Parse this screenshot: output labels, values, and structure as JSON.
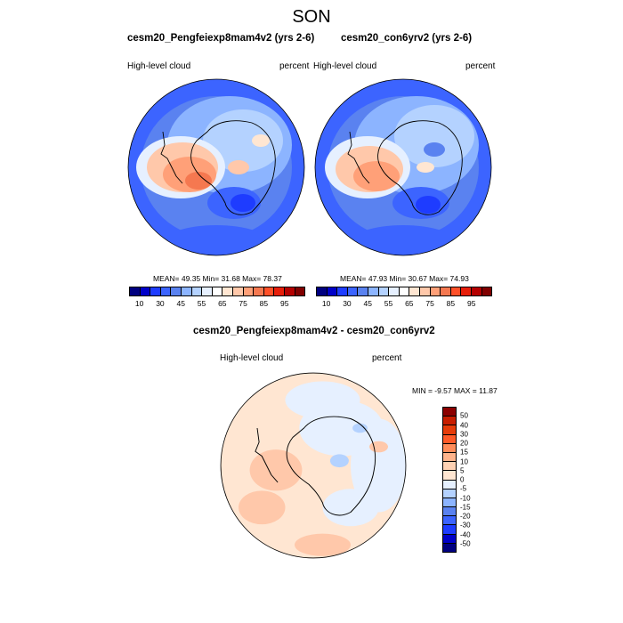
{
  "figure": {
    "title": "SON"
  },
  "panels": [
    {
      "title": "cesm20_Pengfeiexp8mam4v2 (yrs 2-6)",
      "left_label": "High-level cloud",
      "right_label": "percent",
      "stats": "MEAN=  49.35  Min=  31.68  Max=  78.37",
      "mean": 49.35,
      "min": 31.68,
      "max": 78.37
    },
    {
      "title": "cesm20_con6yrv2 (yrs 2-6)",
      "left_label": "High-level cloud",
      "right_label": "percent",
      "stats": "MEAN=  47.93  Min=  30.67  Max=  74.93",
      "mean": 47.93,
      "min": 30.67,
      "max": 74.93
    },
    {
      "title": "cesm20_Pengfeiexp8mam4v2 - cesm20_con6yrv2",
      "left_label": "High-level cloud",
      "right_label": "percent",
      "stats": "MIN =  -9.57 MAX =  11.87",
      "min": -9.57,
      "max": 11.87
    }
  ],
  "colorbar_abs": {
    "colors": [
      "#000080",
      "#0000c8",
      "#1e3cff",
      "#3c64ff",
      "#5a82f0",
      "#8cb4ff",
      "#b4d2ff",
      "#e6f0ff",
      "#ffffff",
      "#ffe6d2",
      "#ffc8aa",
      "#ffa078",
      "#f57850",
      "#ff5028",
      "#e61e0a",
      "#b40000",
      "#800000"
    ],
    "ticks": [
      "10",
      "30",
      "45",
      "55",
      "65",
      "75",
      "85",
      "95"
    ]
  },
  "colorbar_diff": {
    "colors": [
      "#8b0000",
      "#c81e00",
      "#e63c0a",
      "#ff5a28",
      "#ff8c5a",
      "#ffb48c",
      "#ffd2b4",
      "#ffe6d2",
      "#e6f0ff",
      "#b4d2ff",
      "#8cb4ff",
      "#5a82f0",
      "#3c64ff",
      "#1e3cff",
      "#0000c8",
      "#000080"
    ],
    "ticks": [
      "50",
      "40",
      "30",
      "20",
      "15",
      "10",
      "5",
      "0",
      "-5",
      "-10",
      "-15",
      "-20",
      "-30",
      "-40",
      "-50"
    ]
  }
}
